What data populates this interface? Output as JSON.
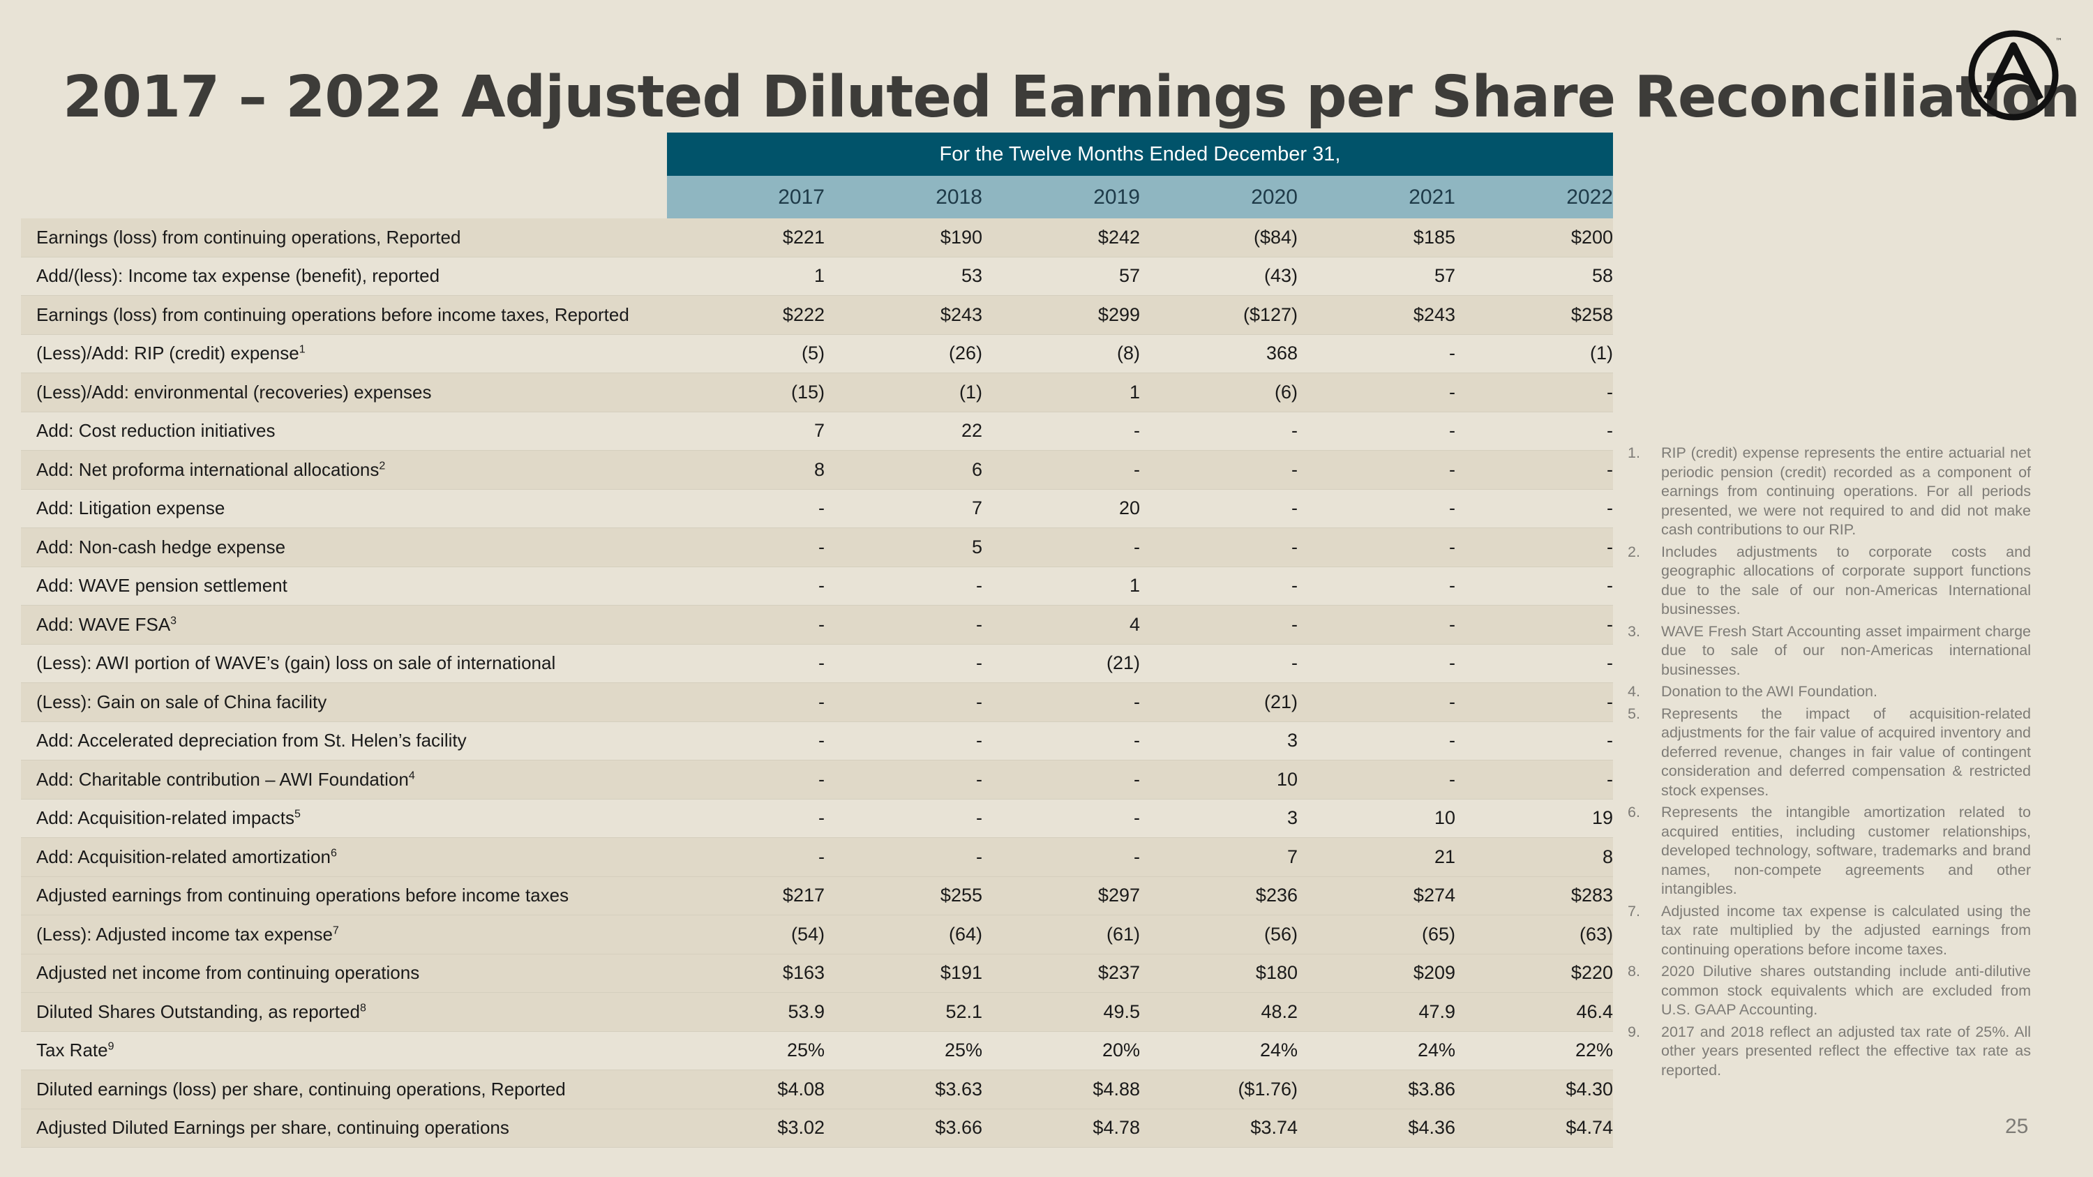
{
  "title": "2017 – 2022 Adjusted Diluted Earnings per Share Reconciliation",
  "header": "For the Twelve Months Ended December 31,",
  "years": [
    "2017",
    "2018",
    "2019",
    "2020",
    "2021",
    "2022"
  ],
  "rows": [
    {
      "label": "Earnings (loss) from continuing operations, Reported",
      "sup": "",
      "values": [
        "$221",
        "$190",
        "$242",
        "($84)",
        "$185",
        "$200"
      ]
    },
    {
      "label": "Add/(less): Income tax expense (benefit), reported",
      "sup": "",
      "values": [
        "1",
        "53",
        "57",
        "(43)",
        "57",
        "58"
      ]
    },
    {
      "label": "Earnings (loss) from continuing operations before income taxes, Reported",
      "sup": "",
      "values": [
        "$222",
        "$243",
        "$299",
        "($127)",
        "$243",
        "$258"
      ]
    },
    {
      "label": "(Less)/Add: RIP (credit) expense",
      "sup": "1",
      "values": [
        "(5)",
        "(26)",
        "(8)",
        "368",
        "-",
        "(1)"
      ]
    },
    {
      "label": "(Less)/Add: environmental (recoveries) expenses",
      "sup": "",
      "values": [
        "(15)",
        "(1)",
        "1",
        "(6)",
        "-",
        "-"
      ]
    },
    {
      "label": "Add: Cost reduction initiatives",
      "sup": "",
      "values": [
        "7",
        "22",
        "-",
        "-",
        "-",
        "-"
      ]
    },
    {
      "label": "Add: Net proforma international allocations",
      "sup": "2",
      "values": [
        "8",
        "6",
        "-",
        "-",
        "-",
        "-"
      ]
    },
    {
      "label": "Add: Litigation expense",
      "sup": "",
      "values": [
        "-",
        "7",
        "20",
        "-",
        "-",
        "-"
      ]
    },
    {
      "label": "Add: Non-cash hedge expense",
      "sup": "",
      "values": [
        "-",
        "5",
        "-",
        "-",
        "-",
        "-"
      ]
    },
    {
      "label": "Add: WAVE pension settlement",
      "sup": "",
      "values": [
        "-",
        "-",
        "1",
        "-",
        "-",
        "-"
      ]
    },
    {
      "label": "Add: WAVE FSA",
      "sup": "3",
      "values": [
        "-",
        "-",
        "4",
        "-",
        "-",
        "-"
      ]
    },
    {
      "label": "(Less): AWI portion of WAVE’s (gain) loss on sale of international",
      "sup": "",
      "values": [
        "-",
        "-",
        "(21)",
        "-",
        "-",
        "-"
      ]
    },
    {
      "label": "(Less): Gain on sale of China facility",
      "sup": "",
      "values": [
        "-",
        "-",
        "-",
        "(21)",
        "-",
        "-"
      ]
    },
    {
      "label": "Add: Accelerated depreciation from St. Helen’s facility",
      "sup": "",
      "values": [
        "-",
        "-",
        "-",
        "3",
        "-",
        "-"
      ]
    },
    {
      "label": "Add: Charitable contribution – AWI Foundation",
      "sup": "4",
      "values": [
        "-",
        "-",
        "-",
        "10",
        "-",
        "-"
      ]
    },
    {
      "label": "Add: Acquisition-related impacts",
      "sup": "5",
      "values": [
        "-",
        "-",
        "-",
        "3",
        "10",
        "19"
      ]
    },
    {
      "label": "Add: Acquisition-related amortization",
      "sup": "6",
      "values": [
        "-",
        "-",
        "-",
        "7",
        "21",
        "8"
      ]
    },
    {
      "label": "Adjusted earnings from continuing operations before income taxes",
      "sup": "",
      "values": [
        "$217",
        "$255",
        "$297",
        "$236",
        "$274",
        "$283"
      ]
    },
    {
      "label": "(Less): Adjusted income tax expense",
      "sup": "7",
      "values": [
        "(54)",
        "(64)",
        "(61)",
        "(56)",
        "(65)",
        "(63)"
      ]
    },
    {
      "label": "Adjusted net income from continuing operations",
      "sup": "",
      "values": [
        "$163",
        "$191",
        "$237",
        "$180",
        "$209",
        "$220"
      ]
    },
    {
      "label": "Diluted Shares Outstanding, as reported",
      "sup": "8",
      "values": [
        "53.9",
        "52.1",
        "49.5",
        "48.2",
        "47.9",
        "46.4"
      ]
    },
    {
      "label": "Tax Rate",
      "sup": "9",
      "values": [
        "25%",
        "25%",
        "20%",
        "24%",
        "24%",
        "22%"
      ]
    },
    {
      "label": "Diluted earnings (loss) per share, continuing operations, Reported",
      "sup": "",
      "values": [
        "$4.08",
        "$3.63",
        "$4.88",
        "($1.76)",
        "$3.86",
        "$4.30"
      ]
    },
    {
      "label": "Adjusted Diluted Earnings per share, continuing operations",
      "sup": "",
      "values": [
        "$3.02",
        "$3.66",
        "$4.78",
        "$3.74",
        "$4.36",
        "$4.74"
      ]
    }
  ],
  "footnotes": [
    {
      "num": "1.",
      "text": "RIP (credit) expense represents the entire actuarial net periodic pension (credit) recorded as a component of earnings from continuing operations. For all periods presented, we were not required to and did not make cash contributions to our RIP."
    },
    {
      "num": "2.",
      "text": "Includes adjustments to corporate costs and geographic allocations of corporate support functions due to the sale of our non-Americas International businesses."
    },
    {
      "num": "3.",
      "text": "WAVE Fresh Start Accounting asset impairment charge due to sale of our non-Americas international businesses."
    },
    {
      "num": "4.",
      "text": "Donation to the AWI Foundation."
    },
    {
      "num": "5.",
      "text": "Represents the impact of acquisition-related adjustments for the fair value of acquired inventory and deferred revenue, changes in fair value of contingent consideration and deferred compensation & restricted stock expenses."
    },
    {
      "num": "6.",
      "text": "Represents the intangible amortization related to acquired entities, including customer relationships, developed technology, software, trademarks and brand names, non-compete agreements and other intangibles."
    },
    {
      "num": "7.",
      "text": "Adjusted income tax expense is calculated using the tax rate multiplied by the adjusted earnings from continuing operations before income taxes."
    },
    {
      "num": "8.",
      "text": "2020 Dilutive shares outstanding include anti-dilutive common stock equivalents which are excluded from U.S. GAAP Accounting."
    },
    {
      "num": "9.",
      "text": "2017 and 2018 reflect an adjusted tax rate of 25%. All other years presented reflect the effective tax rate as reported."
    }
  ],
  "page_number": "25",
  "logo": {
    "icon": "armstrong-a-logo",
    "trademark": "™"
  }
}
